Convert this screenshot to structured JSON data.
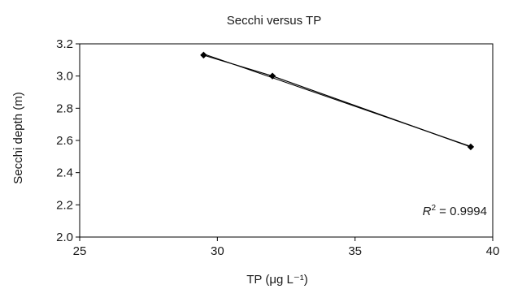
{
  "chart_data": {
    "type": "scatter",
    "title": "Secchi versus TP",
    "xlabel": "TP (μg L⁻¹)",
    "ylabel": "Secchi depth (m)",
    "xlim": [
      25,
      40
    ],
    "ylim": [
      2.0,
      3.2
    ],
    "x_ticks": [
      25,
      30,
      35,
      40
    ],
    "y_ticks": [
      2.0,
      2.2,
      2.4,
      2.6,
      2.8,
      3.0,
      3.2
    ],
    "x_tick_labels": [
      "25",
      "30",
      "35",
      "40"
    ],
    "y_tick_labels": [
      "2.0",
      "2.2",
      "2.4",
      "2.6",
      "2.8",
      "3.0",
      "3.2"
    ],
    "series": [
      {
        "points": [
          {
            "x": 29.5,
            "y": 3.13
          },
          {
            "x": 32.0,
            "y": 3.0
          },
          {
            "x": 39.2,
            "y": 2.56
          }
        ],
        "marker": "diamond",
        "color": "#000000"
      }
    ],
    "trendline": {
      "type": "linear",
      "color": "#000000"
    },
    "annotation": {
      "r_label": "R",
      "r_superscript": "2",
      "r_value": " = 0.9994"
    },
    "grid": false,
    "legend": false
  }
}
